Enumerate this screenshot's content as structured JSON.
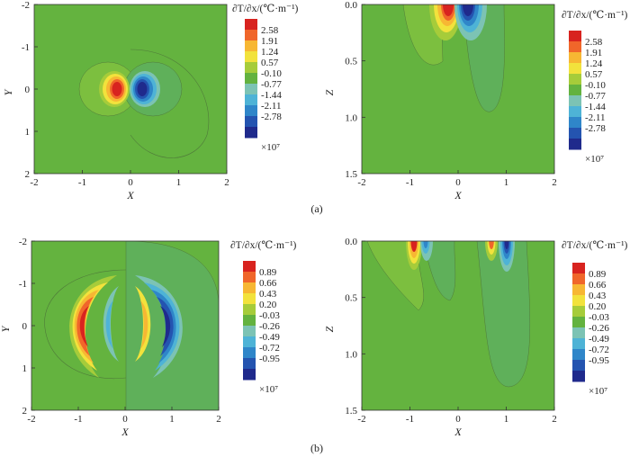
{
  "figure": {
    "captions": [
      "(a)",
      "(b)"
    ],
    "colorbar_title": "∂T/∂x/(℃·m⁻¹)",
    "multiplier": "×10⁷",
    "level_colors": [
      "#1f2a8c",
      "#2454b0",
      "#2f86c9",
      "#4eb3d6",
      "#7cc3b4",
      "#63b23f",
      "#a6cc3a",
      "#f2e23c",
      "#f7b733",
      "#f0662a",
      "#d8231f"
    ],
    "background_color": "#64b33f",
    "contour_line_color": "#4f7a3a"
  },
  "chart_data": [
    {
      "type": "heatmap",
      "panel": "a-plan",
      "xlabel": "X",
      "ylabel": "Y",
      "xlim": [
        -2,
        2
      ],
      "ylim": [
        -2,
        2
      ],
      "xticks": [
        "-2",
        "-1",
        "0",
        "1",
        "2"
      ],
      "yticks": [
        "-2",
        "-1",
        "0",
        "1",
        "2"
      ],
      "colorbar_levels": [
        "2.58",
        "1.91",
        "1.24",
        "0.57",
        "-0.10",
        "-0.77",
        "-1.44",
        "-2.11",
        "-2.78"
      ],
      "colorbar_multiplier": "×10⁷",
      "anomalies": [
        {
          "x": -0.25,
          "y": 0,
          "peak": 2.58
        },
        {
          "x": 0.25,
          "y": 0,
          "peak": -2.78
        }
      ]
    },
    {
      "type": "heatmap",
      "panel": "a-section",
      "xlabel": "X",
      "ylabel": "Z",
      "xlim": [
        -2,
        2
      ],
      "ylim": [
        0,
        1.5
      ],
      "xticks": [
        "-2",
        "-1",
        "0",
        "1",
        "2"
      ],
      "yticks": [
        "0.0",
        "0.5",
        "1.0",
        "1.5"
      ],
      "colorbar_levels": [
        "2.58",
        "1.91",
        "1.24",
        "0.57",
        "-0.10",
        "-0.77",
        "-1.44",
        "-2.11",
        "-2.78"
      ],
      "colorbar_multiplier": "×10⁷",
      "anomalies": [
        {
          "x": -0.25,
          "z": 0,
          "peak": 2.58
        },
        {
          "x": 0.25,
          "z": 0,
          "peak": -2.78
        }
      ]
    },
    {
      "type": "heatmap",
      "panel": "b-plan",
      "xlabel": "X",
      "ylabel": "Y",
      "xlim": [
        -2,
        2
      ],
      "ylim": [
        -2,
        2
      ],
      "xticks": [
        "-2",
        "-1",
        "0",
        "1",
        "2"
      ],
      "yticks": [
        "-2",
        "-1",
        "0",
        "1",
        "2"
      ],
      "colorbar_levels": [
        "0.89",
        "0.66",
        "0.43",
        "0.20",
        "-0.03",
        "-0.26",
        "-0.49",
        "-0.72",
        "-0.95"
      ],
      "colorbar_multiplier": "×10⁷",
      "anomalies": [
        {
          "x": -0.9,
          "y": 0,
          "peak": 0.89,
          "shape": "crescent"
        },
        {
          "x": 0.75,
          "y": 0,
          "peak": -0.95,
          "shape": "crescent"
        }
      ]
    },
    {
      "type": "heatmap",
      "panel": "b-section",
      "xlabel": "X",
      "ylabel": "Z",
      "xlim": [
        -2,
        2
      ],
      "ylim": [
        0,
        1.5
      ],
      "xticks": [
        "-2",
        "-1",
        "0",
        "1",
        "2"
      ],
      "yticks": [
        "0.0",
        "0.5",
        "1.0",
        "1.5"
      ],
      "colorbar_levels": [
        "0.89",
        "0.66",
        "0.43",
        "0.20",
        "-0.03",
        "-0.26",
        "-0.49",
        "-0.72",
        "-0.95"
      ],
      "colorbar_multiplier": "×10⁷",
      "anomalies": [
        {
          "x": -0.95,
          "z": 0,
          "peak": 0.89
        },
        {
          "x": 0.65,
          "z": 0,
          "peak": 0.89
        },
        {
          "x": 1.0,
          "z": 0,
          "peak": -0.95
        }
      ]
    }
  ]
}
